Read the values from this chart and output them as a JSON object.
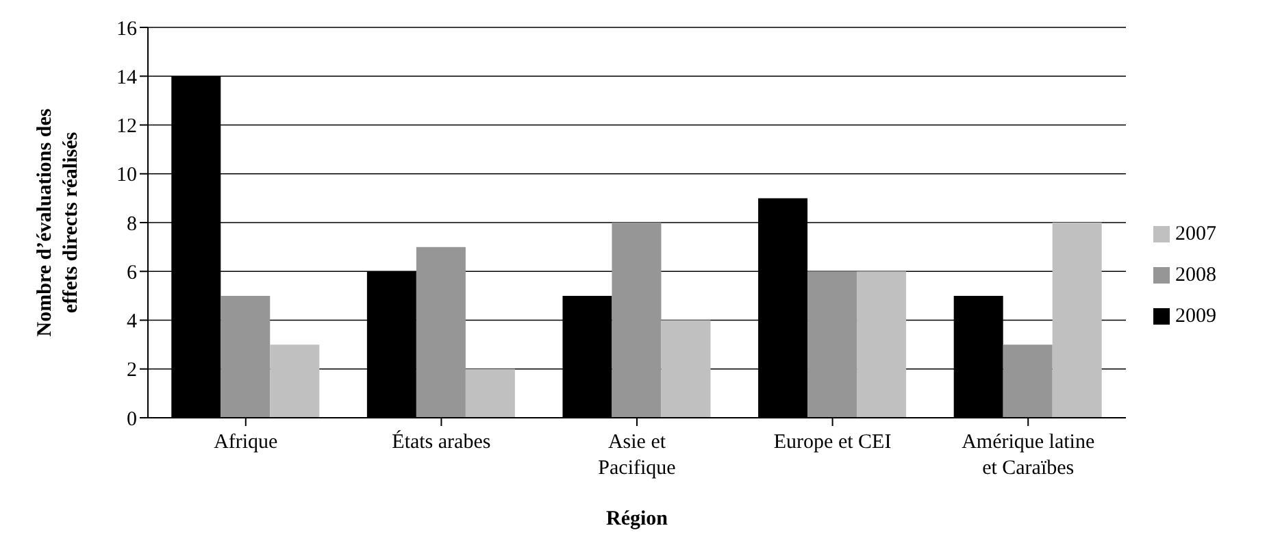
{
  "chart_data": {
    "type": "bar",
    "xlabel": "Région",
    "ylabel": "Nombre d’évaluations des effets directs réalisés",
    "categories": [
      "Afrique",
      "États arabes",
      "Asie et Pacifique",
      "Europe et CEI",
      "Amérique latine et Caraïbes"
    ],
    "series": [
      {
        "name": "2009",
        "color": "#000000",
        "values": [
          14,
          6,
          5,
          9,
          5
        ]
      },
      {
        "name": "2008",
        "color": "#969696",
        "values": [
          5,
          7,
          8,
          6,
          3
        ]
      },
      {
        "name": "2007",
        "color": "#c0c0c0",
        "values": [
          3,
          2,
          4,
          6,
          8
        ]
      }
    ],
    "ylim": [
      0,
      16
    ],
    "yticks": [
      0,
      2,
      4,
      6,
      8,
      10,
      12,
      14,
      16
    ],
    "grid": "y",
    "legend": "right"
  }
}
